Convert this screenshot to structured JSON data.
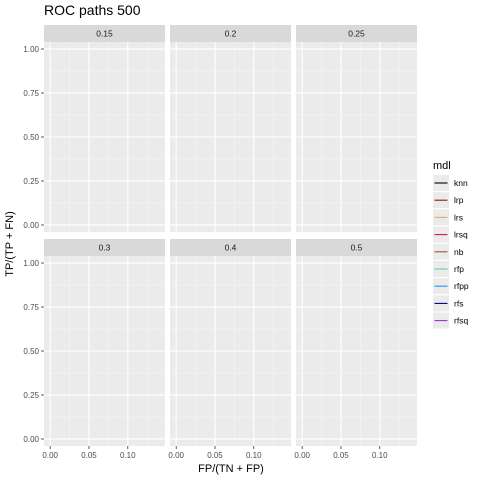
{
  "chart_data": {
    "type": "line",
    "title": "ROC paths 500",
    "xlabel": "FP/(TN + FP)",
    "ylabel": "TP/(TP + FN)",
    "panels": [
      "0.15",
      "0.2",
      "0.25",
      "0.3",
      "0.4",
      "0.5"
    ],
    "x_ticks": [
      "0.00",
      "0.05",
      "0.10"
    ],
    "x_tick_values": [
      0,
      0.05,
      0.1
    ],
    "y_ticks": [
      "0.00",
      "0.25",
      "0.50",
      "0.75",
      "1.00"
    ],
    "y_tick_values": [
      0,
      0.25,
      0.5,
      0.75,
      1.0
    ],
    "xlim": [
      -0.008,
      0.148
    ],
    "ylim": [
      -0.04,
      1.04
    ],
    "grid": true,
    "legend": {
      "title": "mdl",
      "placement": "right",
      "items": [
        {
          "label": "knn",
          "color": "#000000"
        },
        {
          "label": "lrp",
          "color": "#8b1a1a"
        },
        {
          "label": "lrs",
          "color": "#f4a460"
        },
        {
          "label": "lrsq",
          "color": "#c2185b"
        },
        {
          "label": "nb",
          "color": "#a0522d"
        },
        {
          "label": "rfp",
          "color": "#66cdaa"
        },
        {
          "label": "rfpp",
          "color": "#1e90ff"
        },
        {
          "label": "rfs",
          "color": "#00008b"
        },
        {
          "label": "rfsq",
          "color": "#9932cc"
        }
      ]
    },
    "series": []
  }
}
